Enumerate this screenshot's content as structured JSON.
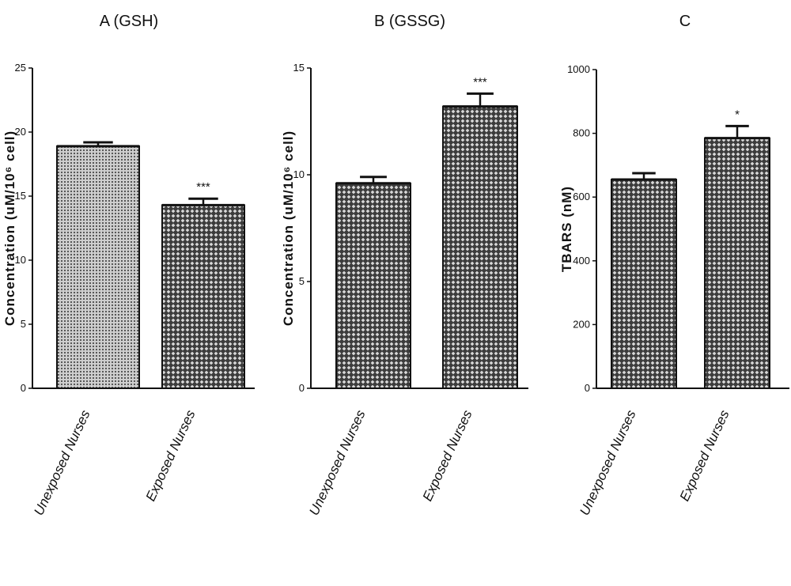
{
  "chart_data": [
    {
      "type": "bar",
      "title": "A (GSH)",
      "ylabel": "Concentration (uM/10⁶ cell)",
      "categories": [
        "Unexposed Nurses",
        "Exposed Nurses"
      ],
      "values": [
        18.9,
        14.3
      ],
      "errors": [
        0.3,
        0.5
      ],
      "significance": [
        "",
        "***"
      ],
      "ylim": [
        0,
        25
      ],
      "yticks": [
        0,
        5,
        10,
        15,
        20,
        25
      ],
      "ytick_labels": [
        "0",
        "5",
        "10",
        "15",
        "20",
        "25"
      ],
      "bar_colors": [
        "#8f8f8f",
        "#6e6e6e"
      ],
      "grid": false
    },
    {
      "type": "bar",
      "title": "B (GSSG)",
      "ylabel": "Concentration (uM/10⁶ cell)",
      "categories": [
        "Unexposed Nurses",
        "Exposed Nurses"
      ],
      "values": [
        9.6,
        13.2
      ],
      "errors": [
        0.3,
        0.6
      ],
      "significance": [
        "",
        "***"
      ],
      "ylim": [
        0,
        15
      ],
      "yticks": [
        0,
        5,
        10,
        15
      ],
      "ytick_labels": [
        "0",
        "5",
        "10",
        "15"
      ],
      "bar_colors": [
        "#6e6e6e",
        "#6e6e6e"
      ],
      "grid": false
    },
    {
      "type": "bar",
      "title": "C",
      "ylabel": "TBARS (nM)",
      "categories": [
        "Unexposed Nurses",
        "Exposed Nurses"
      ],
      "values": [
        655,
        785
      ],
      "errors": [
        20,
        38
      ],
      "significance": [
        "",
        "*"
      ],
      "ylim": [
        0,
        1000
      ],
      "yticks": [
        0,
        200,
        400,
        600,
        800,
        1000
      ],
      "ytick_labels": [
        "0",
        "200",
        "400",
        "600",
        "800",
        "1000"
      ],
      "bar_colors": [
        "#6e6e6e",
        "#6e6e6e"
      ],
      "grid": false
    }
  ]
}
